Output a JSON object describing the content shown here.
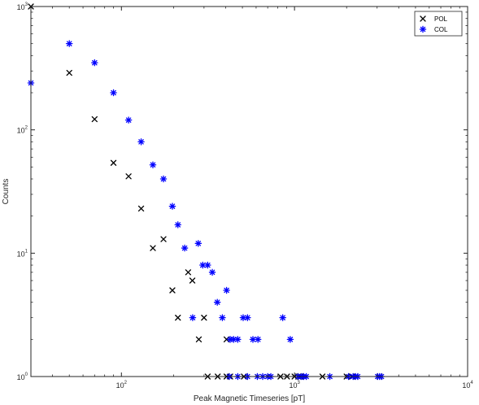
{
  "chart_data": {
    "type": "scatter",
    "xlabel": "Peak Magnetic Timeseries [pT]",
    "ylabel": "Counts",
    "xscale": "log",
    "yscale": "log",
    "xlim": [
      30,
      10000
    ],
    "ylim": [
      1,
      1000
    ],
    "x_ticks": [
      {
        "base": "10",
        "exp": "2",
        "value": 100
      },
      {
        "base": "10",
        "exp": "3",
        "value": 1000
      },
      {
        "base": "10",
        "exp": "4",
        "value": 10000
      }
    ],
    "y_ticks": [
      {
        "base": "10",
        "exp": "0",
        "value": 1
      },
      {
        "base": "10",
        "exp": "1",
        "value": 10
      },
      {
        "base": "10",
        "exp": "2",
        "value": 100
      },
      {
        "base": "10",
        "exp": "3",
        "value": 1000
      }
    ],
    "legend_position": "top-right",
    "grid": false,
    "series": [
      {
        "name": "POL",
        "marker": "x",
        "color": "#000000",
        "points": [
          [
            30,
            1000
          ],
          [
            50,
            290
          ],
          [
            70,
            122
          ],
          [
            90,
            54
          ],
          [
            110,
            42
          ],
          [
            130,
            23
          ],
          [
            152,
            11
          ],
          [
            175,
            13
          ],
          [
            197,
            5
          ],
          [
            212,
            3
          ],
          [
            243,
            7
          ],
          [
            257,
            6
          ],
          [
            280,
            2
          ],
          [
            300,
            3
          ],
          [
            405,
            2
          ],
          [
            315,
            1
          ],
          [
            360,
            1
          ],
          [
            405,
            1
          ],
          [
            425,
            1
          ],
          [
            510,
            1
          ],
          [
            830,
            1
          ],
          [
            905,
            1
          ],
          [
            1000,
            1
          ],
          [
            1050,
            1
          ],
          [
            1080,
            1
          ],
          [
            1450,
            1
          ],
          [
            2000,
            1
          ],
          [
            2150,
            1
          ],
          [
            2250,
            1
          ],
          [
            3100,
            1
          ]
        ]
      },
      {
        "name": "COL",
        "marker": "asterisk",
        "color": "#0000ff",
        "points": [
          [
            30,
            240
          ],
          [
            50,
            500
          ],
          [
            70,
            350
          ],
          [
            90,
            200
          ],
          [
            110,
            120
          ],
          [
            130,
            80
          ],
          [
            152,
            52
          ],
          [
            175,
            40
          ],
          [
            197,
            24
          ],
          [
            212,
            17
          ],
          [
            232,
            11
          ],
          [
            258,
            3
          ],
          [
            278,
            12
          ],
          [
            295,
            8
          ],
          [
            315,
            8
          ],
          [
            335,
            7
          ],
          [
            358,
            4
          ],
          [
            383,
            3
          ],
          [
            405,
            5
          ],
          [
            425,
            2
          ],
          [
            445,
            2
          ],
          [
            470,
            2
          ],
          [
            505,
            3
          ],
          [
            535,
            3
          ],
          [
            575,
            2
          ],
          [
            615,
            2
          ],
          [
            855,
            3
          ],
          [
            945,
            2
          ],
          [
            420,
            1
          ],
          [
            470,
            1
          ],
          [
            535,
            1
          ],
          [
            610,
            1
          ],
          [
            655,
            1
          ],
          [
            700,
            1
          ],
          [
            730,
            1
          ],
          [
            1050,
            1
          ],
          [
            1100,
            1
          ],
          [
            1130,
            1
          ],
          [
            1170,
            1
          ],
          [
            1600,
            1
          ],
          [
            2050,
            1
          ],
          [
            2180,
            1
          ],
          [
            2250,
            1
          ],
          [
            2320,
            1
          ],
          [
            3020,
            1
          ],
          [
            3100,
            1
          ],
          [
            3180,
            1
          ]
        ]
      }
    ]
  }
}
